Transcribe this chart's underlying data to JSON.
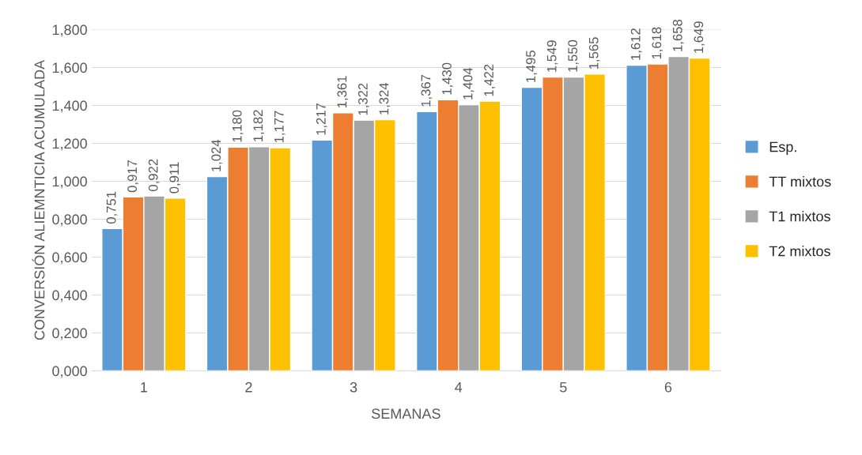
{
  "chart_data": {
    "type": "bar",
    "xlabel": "SEMANAS",
    "ylabel": "CONVERSIÓN ALIEMNTICIA ACUMULADA",
    "categories": [
      "1",
      "2",
      "3",
      "4",
      "5",
      "6"
    ],
    "series": [
      {
        "name": "Esp.",
        "color": "#5b9bd5",
        "values": [
          0.751,
          1.024,
          1.217,
          1.367,
          1.495,
          1.612
        ],
        "value_labels": [
          "0,751",
          "1,024",
          "1,217",
          "1,367",
          "1,495",
          "1,612"
        ]
      },
      {
        "name": "TT mixtos",
        "color": "#ed7d31",
        "values": [
          0.917,
          1.18,
          1.361,
          1.43,
          1.549,
          1.618
        ],
        "value_labels": [
          "0,917",
          "1,180",
          "1,361",
          "1,430",
          "1,549",
          "1,618"
        ]
      },
      {
        "name": "T1 mixtos",
        "color": "#a5a5a5",
        "values": [
          0.922,
          1.182,
          1.322,
          1.404,
          1.55,
          1.658
        ],
        "value_labels": [
          "0,922",
          "1,182",
          "1,322",
          "1,404",
          "1,550",
          "1,658"
        ]
      },
      {
        "name": "T2 mixtos",
        "color": "#ffc000",
        "values": [
          0.911,
          1.177,
          1.324,
          1.422,
          1.565,
          1.649
        ],
        "value_labels": [
          "0,911",
          "1,177",
          "1,324",
          "1,422",
          "1,565",
          "1,649"
        ]
      }
    ],
    "ylim": [
      0,
      1.8
    ],
    "yticks": [
      {
        "value": 0,
        "label": "0,000"
      },
      {
        "value": 0.2,
        "label": "0,200"
      },
      {
        "value": 0.4,
        "label": "0,400"
      },
      {
        "value": 0.6,
        "label": "0,600"
      },
      {
        "value": 0.8,
        "label": "0,800"
      },
      {
        "value": 1.0,
        "label": "1,000"
      },
      {
        "value": 1.2,
        "label": "1,200"
      },
      {
        "value": 1.4,
        "label": "1,400"
      },
      {
        "value": 1.6,
        "label": "1,600"
      },
      {
        "value": 1.8,
        "label": "1,800"
      }
    ],
    "grid": "y",
    "legend": "right"
  }
}
